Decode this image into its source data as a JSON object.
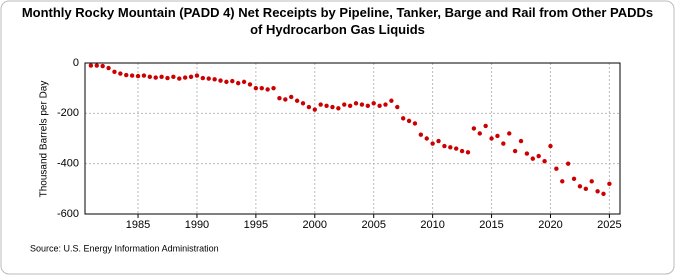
{
  "chart_data": {
    "type": "scatter",
    "title": "Monthly Rocky Mountain (PADD 4) Net Receipts by Pipeline, Tanker, Barge and Rail from Other PADDs of Hydrocarbon Gas Liquids",
    "y_label": "Thousand Barrels per Day",
    "source": "Source: U.S. Energy Information Administration",
    "color": "#cc0000",
    "grid": true,
    "xlim": [
      1980.5,
      2025.9
    ],
    "xticks": [
      1985,
      1990,
      1995,
      2000,
      2005,
      2010,
      2015,
      2020,
      2025
    ],
    "ylim": [
      -600,
      0
    ],
    "yticks": [
      0,
      -200,
      -400,
      -600
    ],
    "x": [
      1981,
      1981.5,
      1982,
      1982.5,
      1983,
      1983.5,
      1984,
      1984.5,
      1985,
      1985.5,
      1986,
      1986.5,
      1987,
      1987.5,
      1988,
      1988.5,
      1989,
      1989.5,
      1990,
      1990.5,
      1991,
      1991.5,
      1992,
      1992.5,
      1993,
      1993.5,
      1994,
      1994.5,
      1995,
      1995.5,
      1996,
      1996.5,
      1997,
      1997.5,
      1998,
      1998.5,
      1999,
      1999.5,
      2000,
      2000.5,
      2001,
      2001.5,
      2002,
      2002.5,
      2003,
      2003.5,
      2004,
      2004.5,
      2005,
      2005.5,
      2006,
      2006.5,
      2007,
      2007.5,
      2008,
      2008.5,
      2009,
      2009.5,
      2010,
      2010.5,
      2011,
      2011.5,
      2012,
      2012.5,
      2013,
      2013.5,
      2014,
      2014.5,
      2015,
      2015.5,
      2016,
      2016.5,
      2017,
      2017.5,
      2018,
      2018.5,
      2019,
      2019.5,
      2020,
      2020.5,
      2021,
      2021.5,
      2022,
      2022.5,
      2023,
      2023.5,
      2024,
      2024.5,
      2025
    ],
    "values": [
      -10,
      -10,
      -12,
      -20,
      -35,
      -42,
      -48,
      -50,
      -52,
      -50,
      -55,
      -58,
      -55,
      -60,
      -55,
      -62,
      -58,
      -55,
      -50,
      -60,
      -62,
      -65,
      -70,
      -75,
      -72,
      -80,
      -75,
      -85,
      -100,
      -100,
      -105,
      -100,
      -140,
      -145,
      -135,
      -150,
      -160,
      -175,
      -185,
      -165,
      -170,
      -175,
      -180,
      -165,
      -170,
      -160,
      -165,
      -170,
      -160,
      -170,
      -165,
      -150,
      -175,
      -220,
      -230,
      -240,
      -285,
      -300,
      -320,
      -310,
      -330,
      -335,
      -340,
      -350,
      -355,
      -260,
      -280,
      -250,
      -300,
      -290,
      -320,
      -280,
      -350,
      -310,
      -360,
      -380,
      -370,
      -390,
      -330,
      -420,
      -470,
      -400,
      -460,
      -490,
      -500,
      -470,
      -510,
      -520,
      -480
    ]
  }
}
